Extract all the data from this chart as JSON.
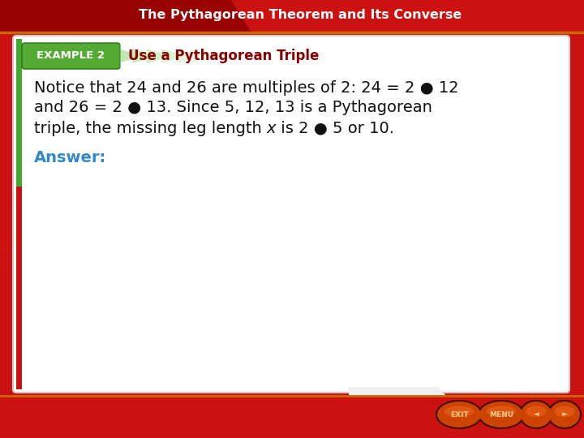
{
  "title_text": "The Pythagorean Theorem and Its Converse",
  "title_text_color": "#ffffff",
  "title_bg_top": "#cc1111",
  "title_bg_dark": "#990000",
  "example_label": "EXAMPLE 2",
  "example_label_bg": "#55aa33",
  "example_subtitle": "Use a Pythagorean Triple",
  "example_subtitle_color": "#880000",
  "body_line1": "Notice that 24 and 26 are multiples of 2: 24 = 2 ● 12",
  "body_line2": "and 26 = 2 ● 13. Since 5, 12, 13 is a Pythagorean",
  "body_line3_pre": "triple, the missing leg length ",
  "body_line3_x": "x",
  "body_line3_post": " is 2 ● 5 or 10.",
  "answer_text": "Answer:",
  "answer_color": "#3388cc",
  "bg_red": "#cc1111",
  "bg_dark_red": "#aa0000",
  "content_bg": "#ffffff",
  "gold_line": "#cc6600",
  "nav_step_color": "#dddddd",
  "btn_outer": "#6b1a00",
  "btn_inner": "#cc4400",
  "btn_highlight": "#ee6622",
  "btn_text": "#ffcc88",
  "watermark_color": "#cc2222"
}
